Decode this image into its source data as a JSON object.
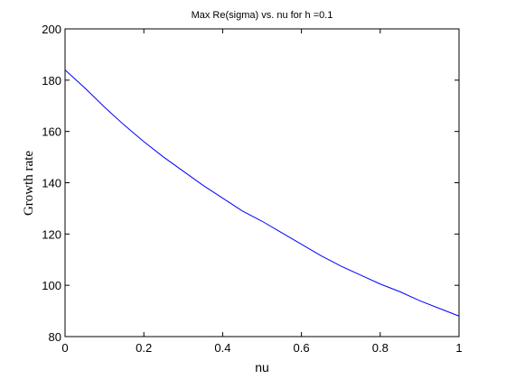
{
  "chart_data": {
    "type": "line",
    "title": "Max Re(sigma) vs. nu for h =0.1",
    "xlabel": "nu",
    "ylabel": "Growth rate",
    "xlim": [
      0,
      1
    ],
    "ylim": [
      80,
      200
    ],
    "xticks": [
      "0",
      "0.2",
      "0.4",
      "0.6",
      "0.8",
      "1"
    ],
    "yticks": [
      "80",
      "100",
      "120",
      "140",
      "160",
      "180",
      "200"
    ],
    "grid": false,
    "series": [
      {
        "color": "#0000ff",
        "x": [
          0,
          0.05,
          0.1,
          0.15,
          0.2,
          0.25,
          0.3,
          0.35,
          0.4,
          0.45,
          0.5,
          0.55,
          0.6,
          0.65,
          0.7,
          0.75,
          0.8,
          0.85,
          0.9,
          0.95,
          1.0
        ],
        "y": [
          184,
          177,
          169.5,
          162.5,
          156,
          150,
          144.5,
          139,
          134,
          129,
          125,
          120.5,
          116,
          111.5,
          107.5,
          104,
          100.5,
          97.5,
          94,
          91,
          88
        ]
      }
    ]
  }
}
